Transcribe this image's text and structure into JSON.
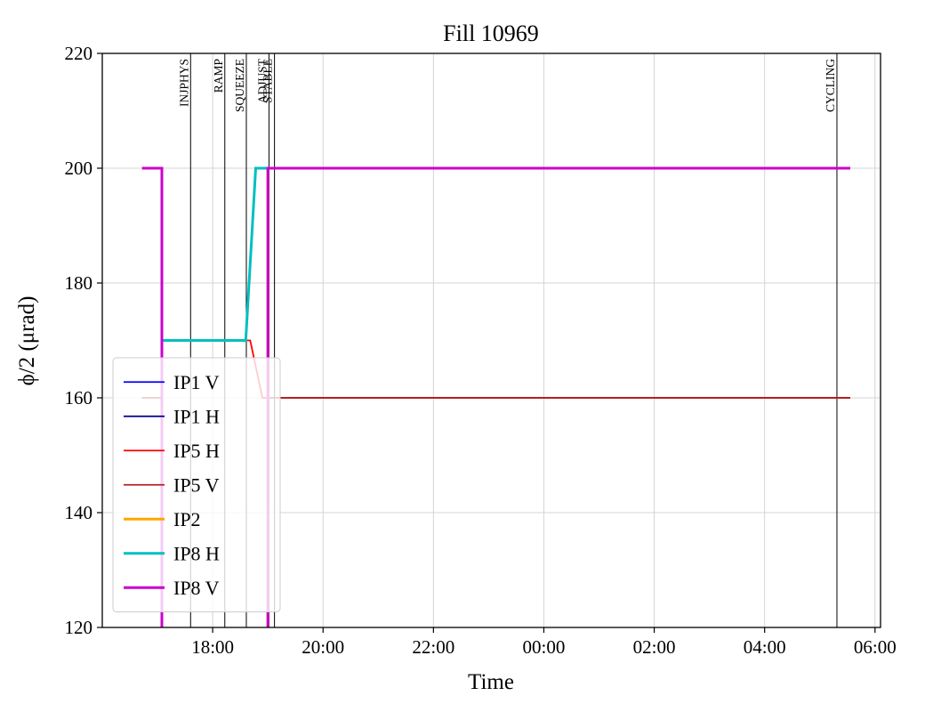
{
  "chart_data": {
    "type": "line",
    "title": "Fill 10969",
    "xlabel": "Time",
    "ylabel": "ϕ/2 (μrad)",
    "xlim": [
      16.0,
      30.1
    ],
    "ylim": [
      120,
      220
    ],
    "grid": true,
    "grid_color": "#d4d4d4",
    "legend_position": "lower left",
    "xticks": [
      {
        "value": 18,
        "label": "18:00"
      },
      {
        "value": 20,
        "label": "20:00"
      },
      {
        "value": 22,
        "label": "22:00"
      },
      {
        "value": 24,
        "label": "00:00"
      },
      {
        "value": 26,
        "label": "02:00"
      },
      {
        "value": 28,
        "label": "04:00"
      },
      {
        "value": 30,
        "label": "06:00"
      }
    ],
    "yticks": [
      {
        "value": 120,
        "label": "120"
      },
      {
        "value": 140,
        "label": "140"
      },
      {
        "value": 160,
        "label": "160"
      },
      {
        "value": 180,
        "label": "180"
      },
      {
        "value": 200,
        "label": "200"
      },
      {
        "value": 220,
        "label": "220"
      }
    ],
    "event_lines": [
      {
        "time": 17.6,
        "label": "INJPHYS"
      },
      {
        "time": 18.22,
        "label": "RAMP"
      },
      {
        "time": 18.61,
        "label": "SQUEEZE"
      },
      {
        "time": 19.02,
        "label": "ADJUST"
      },
      {
        "time": 19.12,
        "label": "STABLE"
      },
      {
        "time": 29.31,
        "label": "CYCLING"
      }
    ],
    "series": [
      {
        "name": "IP1 V",
        "color": "#0000ff",
        "width": 1.8,
        "segments": [
          [
            [
              16.72,
              160
            ],
            [
              17.08,
              160
            ],
            [
              17.08,
              115
            ]
          ],
          [
            [
              19.0,
              115
            ],
            [
              19.0,
              160
            ],
            [
              29.55,
              160
            ]
          ]
        ]
      },
      {
        "name": "IP1 H",
        "color": "#00008b",
        "width": 1.8,
        "segments": [
          [
            [
              16.72,
              160
            ],
            [
              17.08,
              160
            ],
            [
              17.08,
              115
            ]
          ],
          [
            [
              19.0,
              115
            ],
            [
              19.0,
              160
            ],
            [
              29.55,
              160
            ]
          ]
        ]
      },
      {
        "name": "IP5 H",
        "color": "#ff0000",
        "width": 1.8,
        "segments": [
          [
            [
              16.72,
              160
            ],
            [
              17.08,
              160
            ],
            [
              17.08,
              115
            ]
          ],
          [
            [
              17.08,
              170
            ],
            [
              18.68,
              170
            ],
            [
              18.9,
              160
            ],
            [
              29.55,
              160
            ]
          ]
        ]
      },
      {
        "name": "IP5 V",
        "color": "#b22222",
        "width": 1.8,
        "segments": [
          [
            [
              16.72,
              160
            ],
            [
              17.08,
              160
            ],
            [
              17.08,
              115
            ]
          ],
          [
            [
              19.0,
              115
            ],
            [
              19.0,
              160
            ],
            [
              29.55,
              160
            ]
          ]
        ]
      },
      {
        "name": "IP2",
        "color": "#ffa500",
        "width": 3,
        "segments": [
          [
            [
              16.72,
              200
            ],
            [
              17.08,
              200
            ],
            [
              17.08,
              115
            ]
          ],
          [
            [
              19.0,
              115
            ],
            [
              19.0,
              200
            ],
            [
              29.55,
              200
            ]
          ]
        ]
      },
      {
        "name": "IP8 H",
        "color": "#00bfbf",
        "width": 3,
        "segments": [
          [
            [
              17.08,
              170
            ],
            [
              18.6,
              170
            ],
            [
              18.78,
              200
            ],
            [
              29.55,
              200
            ]
          ]
        ]
      },
      {
        "name": "IP8 V",
        "color": "#cc00cc",
        "width": 3,
        "segments": [
          [
            [
              16.72,
              200
            ],
            [
              17.08,
              200
            ],
            [
              17.08,
              115
            ]
          ],
          [
            [
              19.0,
              115
            ],
            [
              19.0,
              200
            ],
            [
              29.55,
              200
            ]
          ]
        ]
      }
    ]
  }
}
